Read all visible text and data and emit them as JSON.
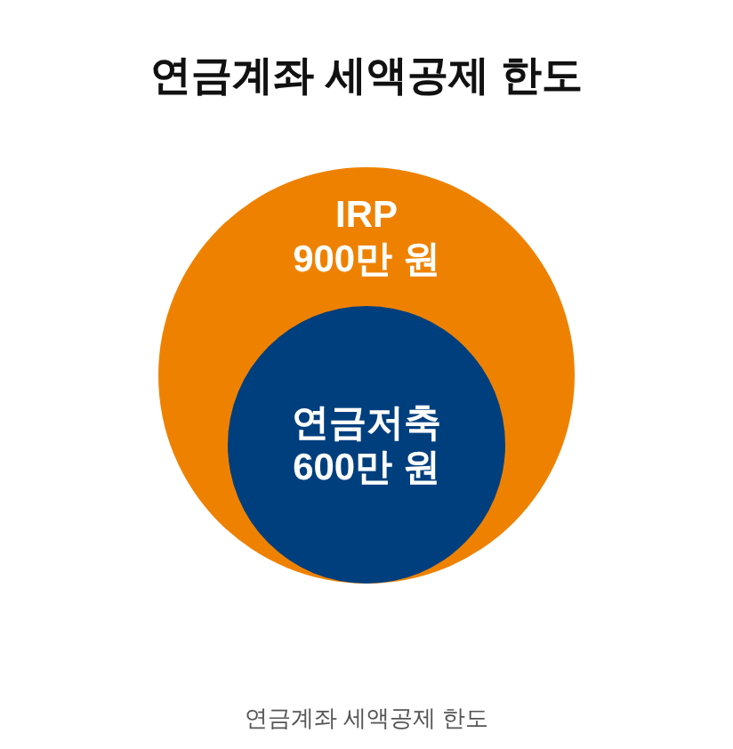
{
  "chart_data": {
    "type": "other",
    "title": "연금계좌 세액공제 한도",
    "categories": [
      "IRP",
      "연금저축"
    ],
    "values": [
      900,
      600
    ],
    "value_labels": [
      "900만 원",
      "600만 원"
    ],
    "colors": [
      "#ee8200",
      "#003f7e"
    ],
    "annotations": [
      "연금계좌 세액공제 한도"
    ]
  }
}
